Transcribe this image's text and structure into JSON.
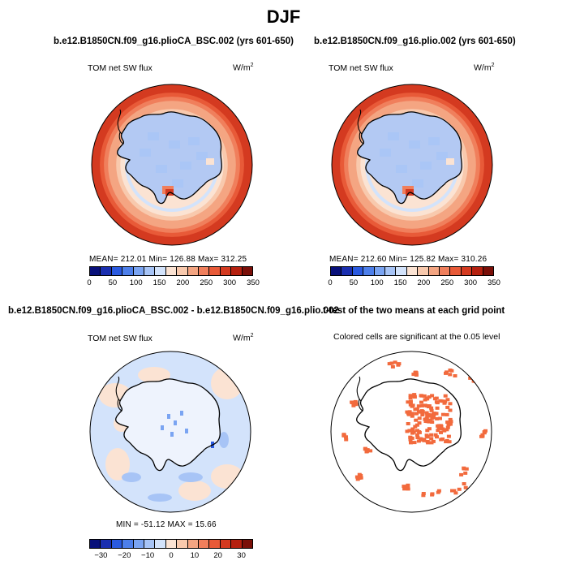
{
  "figure": {
    "season": "DJF"
  },
  "panels": {
    "top_left": {
      "title": "b.e12.B1850CN.f09_g16.plioCA_BSC.002 (yrs 601-650)",
      "variable": "TOM net SW flux",
      "units_base": "W/m",
      "units_exp": "2",
      "stats": "MEAN= 212.01   Min= 126.88   Max= 312.25"
    },
    "top_right": {
      "title": "b.e12.B1850CN.f09_g16.plio.002 (yrs 601-650)",
      "variable": "TOM net SW flux",
      "units_base": "W/m",
      "units_exp": "2",
      "stats": "MEAN= 212.60   Min= 125.82   Max= 310.26"
    },
    "bottom_left": {
      "title": "b.e12.B1850CN.f09_g16.plioCA_BSC.002 - b.e12.B1850CN.f09_g16.plio.002",
      "variable": "TOM net SW flux",
      "units_base": "W/m",
      "units_exp": "2",
      "stats": "MIN = -51.12  MAX =  15.66"
    },
    "bottom_right": {
      "title": "t-test of the two means at each grid point",
      "subtitle": "Colored cells are significant at the 0.05 level"
    }
  },
  "colors": {
    "abs_scale": [
      "#08107a",
      "#1a2fb0",
      "#2a5ae0",
      "#4d7fea",
      "#7aa4f2",
      "#a7c4f6",
      "#d3e3fb",
      "#fbe3d3",
      "#f8c9ad",
      "#f4a582",
      "#f07f5c",
      "#e85a38",
      "#d43a20",
      "#b5200f",
      "#7a0f08"
    ],
    "diff_scale": [
      "#08107a",
      "#1a2fb0",
      "#2a5ae0",
      "#4d7fea",
      "#7aa4f2",
      "#a7c4f6",
      "#d3e3fb",
      "#fbe3d3",
      "#f8c9ad",
      "#f4a582",
      "#f07f5c",
      "#e85a38",
      "#d43a20",
      "#b5200f",
      "#7a0f08"
    ],
    "significance": "#f26a3d",
    "continent_fill": "#b3c9f3"
  },
  "chart_data": [
    {
      "type": "heatmap",
      "projection": "south-polar-stereographic",
      "title": "b.e12.B1850CN.f09_g16.plioCA_BSC.002 (yrs 601-650)",
      "variable": "TOM net SW flux",
      "units": "W/m2",
      "mean": 212.01,
      "min": 126.88,
      "max": 312.25,
      "colorbar_ticks": [
        "0",
        "50",
        "100",
        "150",
        "200",
        "250",
        "300",
        "350"
      ],
      "colorbar_range": [
        0,
        350
      ],
      "zonal_profile": {
        "ring_level_values": [
          300,
          280,
          262,
          245,
          228,
          210,
          195,
          180,
          165,
          150
        ]
      }
    },
    {
      "type": "heatmap",
      "projection": "south-polar-stereographic",
      "title": "b.e12.B1850CN.f09_g16.plio.002 (yrs 601-650)",
      "variable": "TOM net SW flux",
      "units": "W/m2",
      "mean": 212.6,
      "min": 125.82,
      "max": 310.26,
      "colorbar_ticks": [
        "0",
        "50",
        "100",
        "150",
        "200",
        "250",
        "300",
        "350"
      ],
      "colorbar_range": [
        0,
        350
      ],
      "zonal_profile": {
        "ring_level_values": [
          300,
          280,
          262,
          245,
          228,
          210,
          195,
          180,
          165,
          150
        ]
      }
    },
    {
      "type": "heatmap",
      "projection": "south-polar-stereographic",
      "title": "b.e12.B1850CN.f09_g16.plioCA_BSC.002 - b.e12.B1850CN.f09_g16.plio.002",
      "variable": "TOM net SW flux",
      "units": "W/m2",
      "min": -51.12,
      "max": 15.66,
      "colorbar_ticks": [
        "-30",
        "-20",
        "-10",
        "0",
        "10",
        "20",
        "30"
      ],
      "colorbar_range": [
        -35,
        35
      ]
    },
    {
      "type": "heatmap",
      "projection": "south-polar-stereographic",
      "title": "t-test of the two means at each grid point",
      "annotation": "Colored cells are significant at the 0.05 level",
      "significance_level": 0.05
    }
  ]
}
